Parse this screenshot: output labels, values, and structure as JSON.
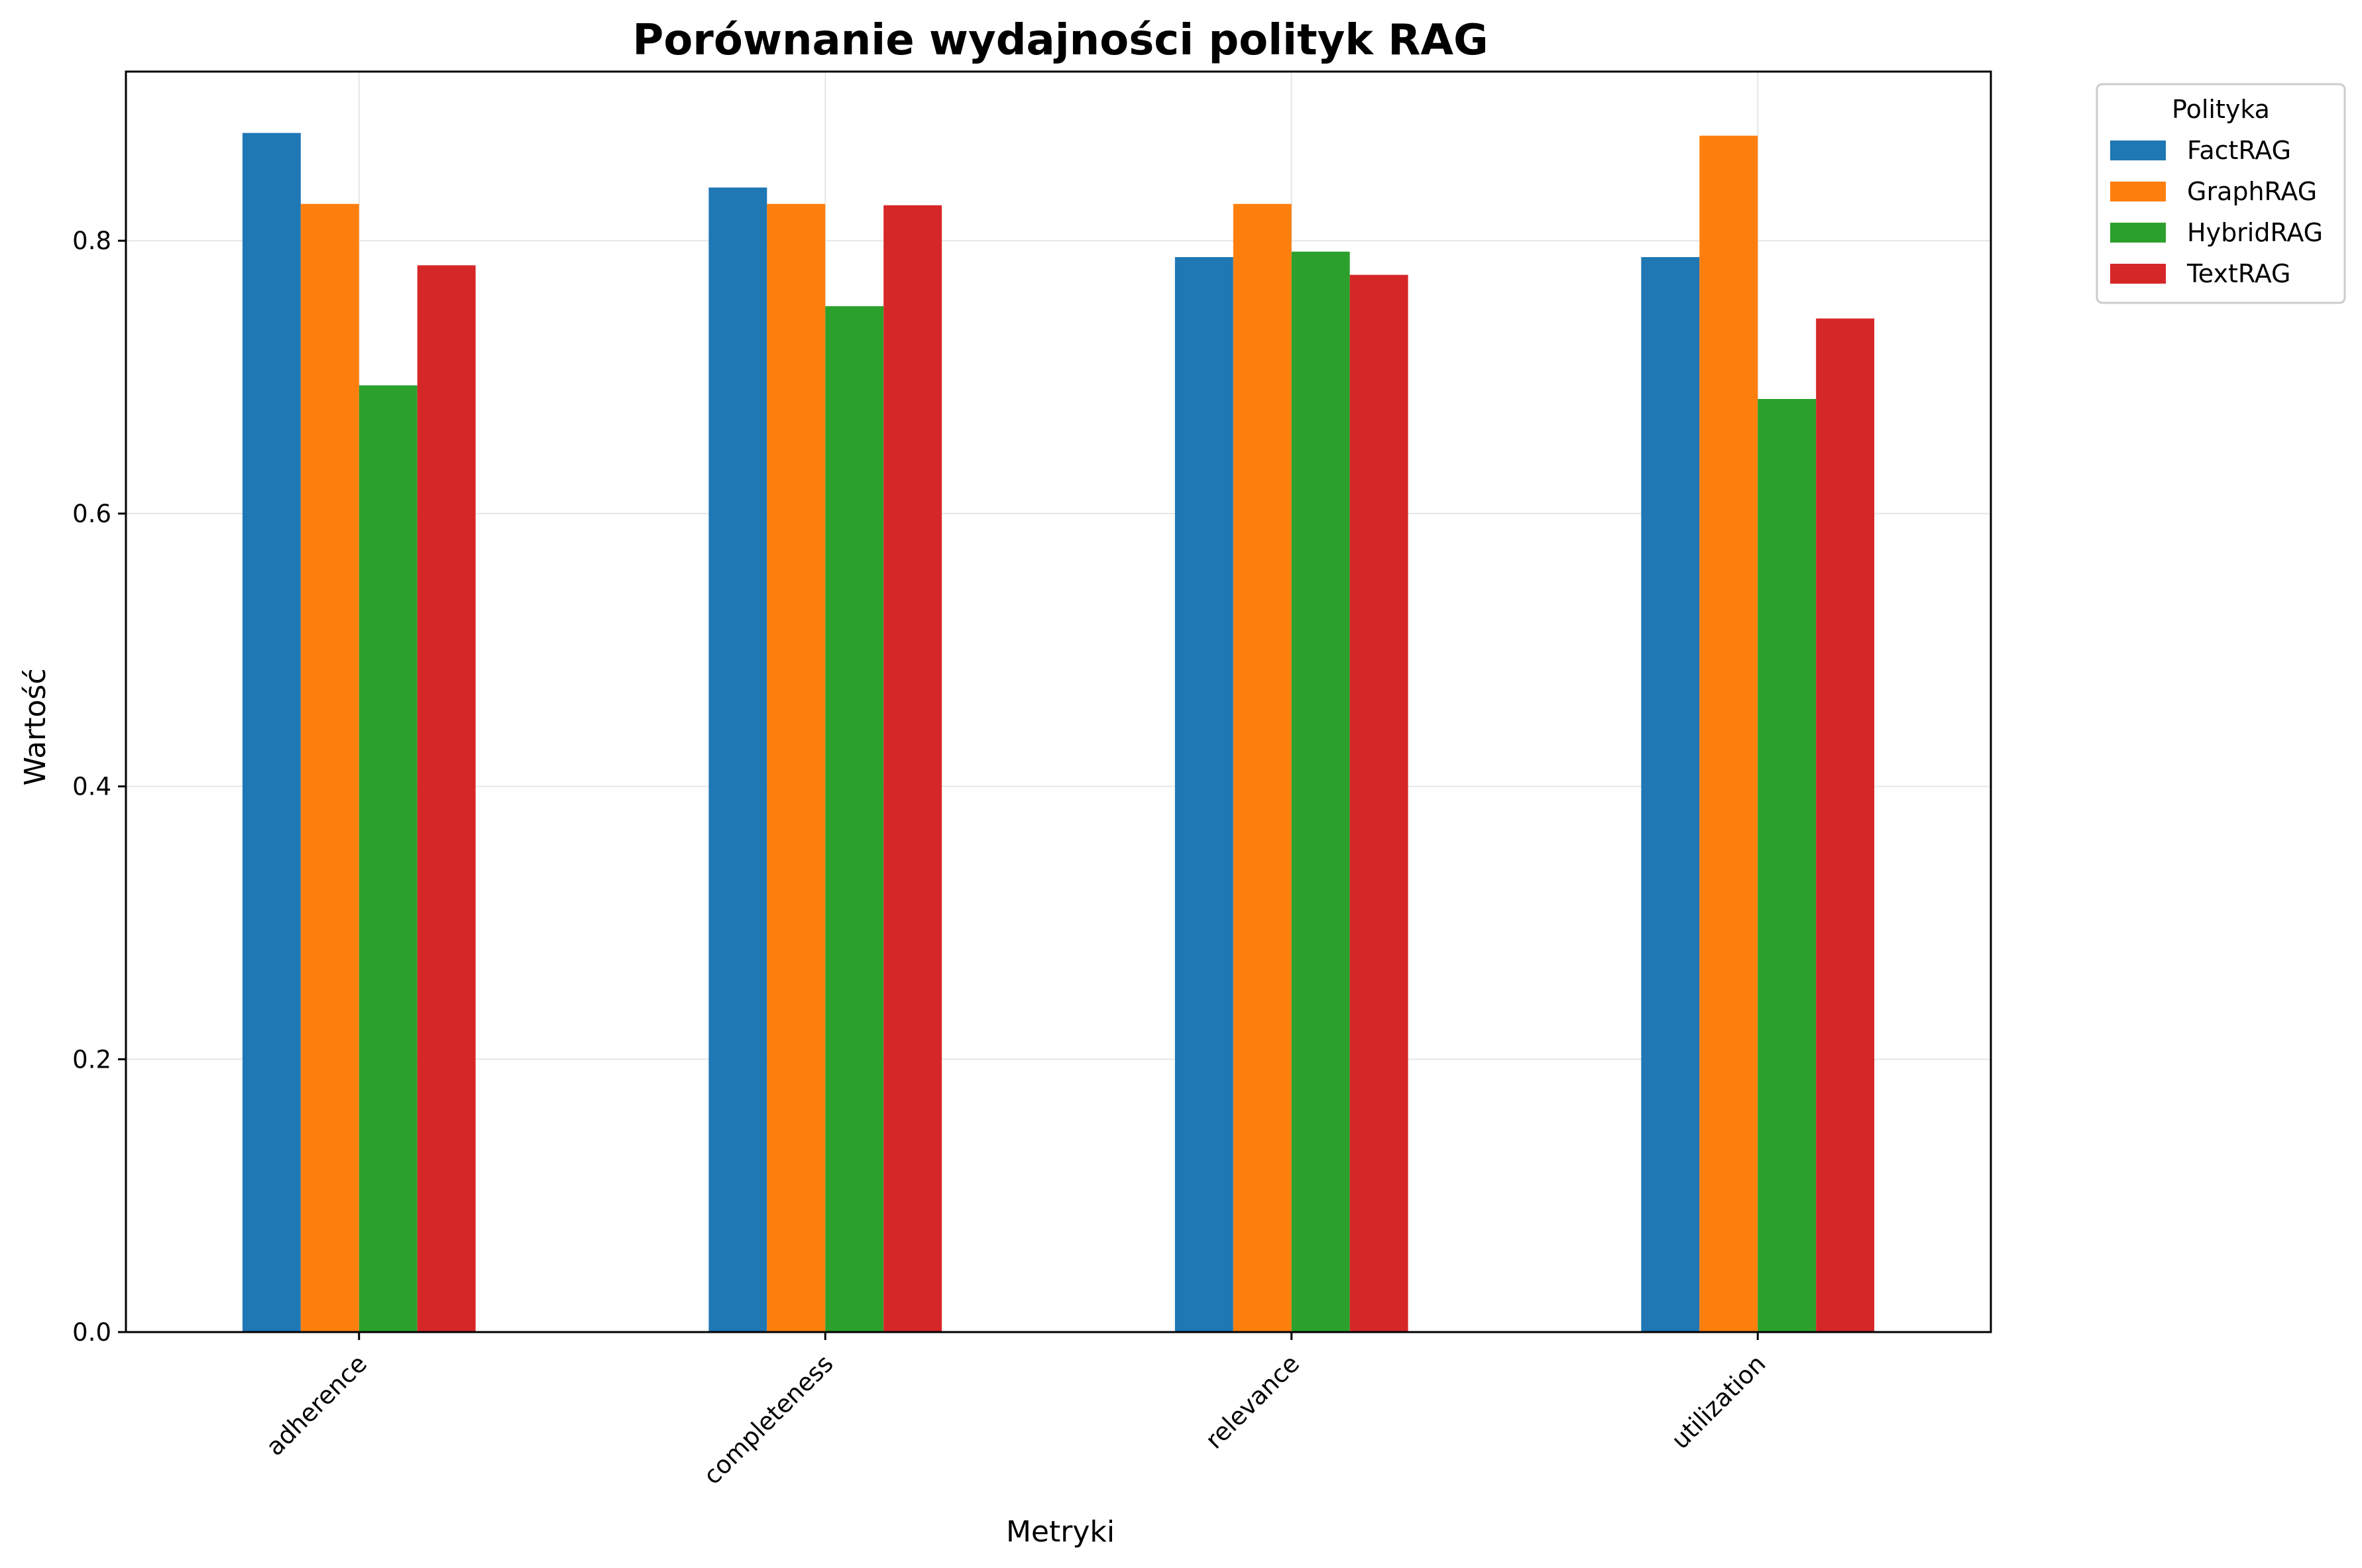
{
  "chart_data": {
    "type": "bar",
    "title": "Porównanie wydajności polityk RAG",
    "xlabel": "Metryki",
    "ylabel": "Wartość",
    "ylim": [
      0,
      0.924
    ],
    "yticks": [
      "0.0",
      "0.2",
      "0.4",
      "0.6",
      "0.8"
    ],
    "grid": true,
    "legend": {
      "title": "Polityka",
      "placement": "outside-top-right"
    },
    "categories": [
      "adherence",
      "completeness",
      "relevance",
      "utilization"
    ],
    "series": [
      {
        "name": "FactRAG",
        "color": "#1f77b4",
        "values": [
          0.879,
          0.839,
          0.788,
          0.788
        ]
      },
      {
        "name": "GraphRAG",
        "color": "#ff7f0e",
        "values": [
          0.827,
          0.827,
          0.827,
          0.877
        ]
      },
      {
        "name": "HybridRAG",
        "color": "#2ca02c",
        "values": [
          0.694,
          0.752,
          0.792,
          0.684
        ]
      },
      {
        "name": "TextRAG",
        "color": "#d62728",
        "values": [
          0.782,
          0.826,
          0.775,
          0.743
        ]
      }
    ]
  }
}
